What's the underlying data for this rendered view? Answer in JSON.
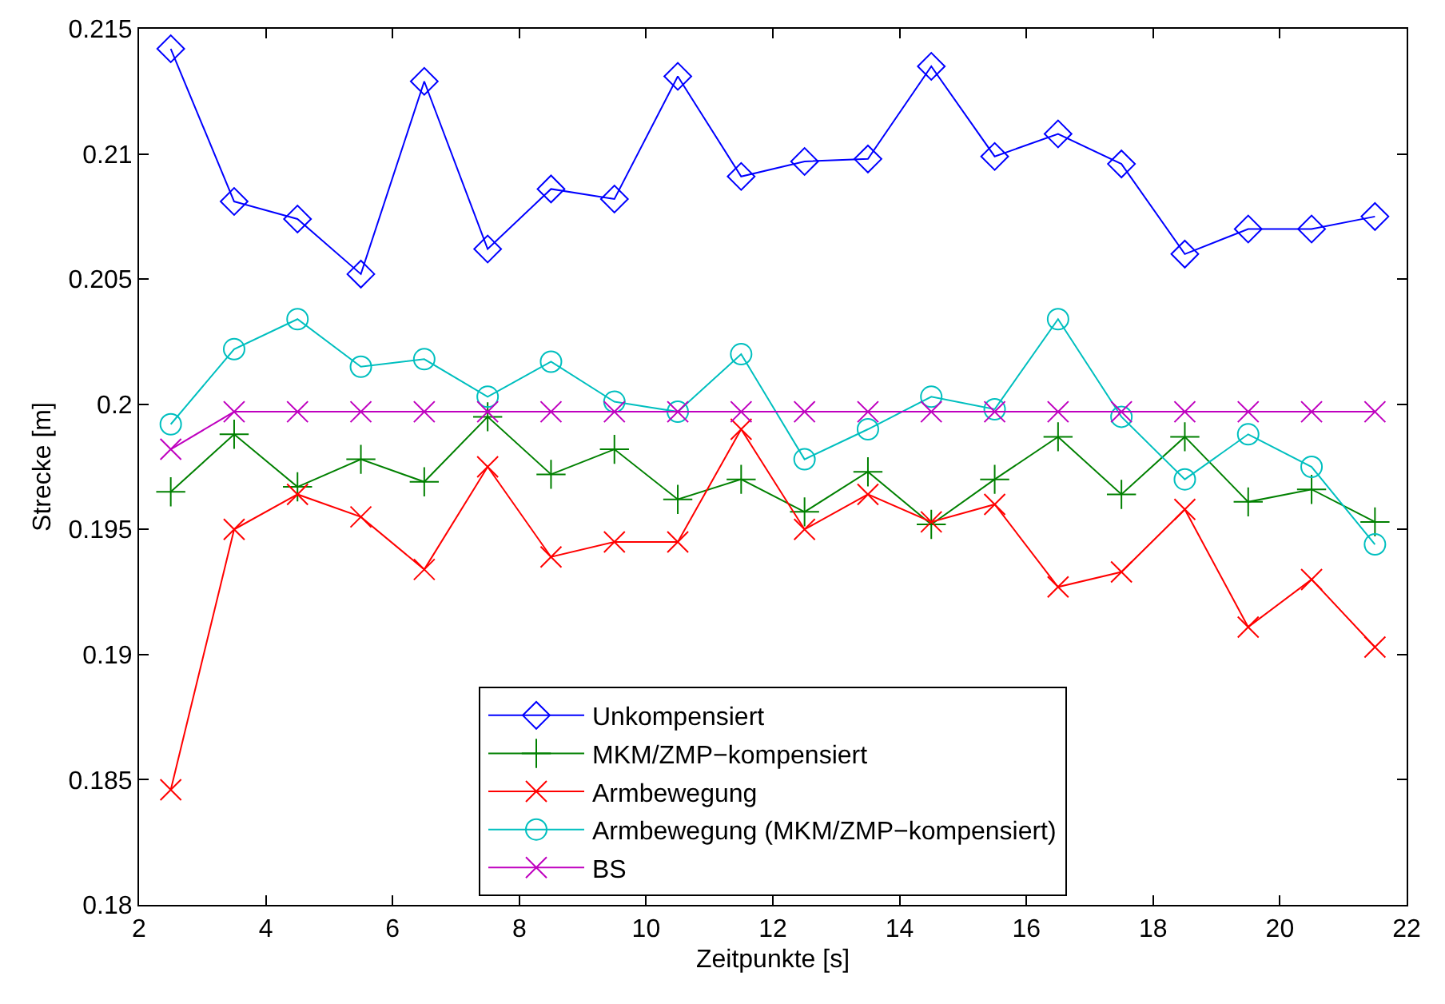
{
  "chart_data": {
    "type": "line",
    "xlabel": "Zeitpunkte [s]",
    "ylabel": "Strecke [m]",
    "x": [
      2.5,
      3.5,
      4.5,
      5.5,
      6.5,
      7.5,
      8.5,
      9.5,
      10.5,
      11.5,
      12.5,
      13.5,
      14.5,
      15.5,
      16.5,
      17.5,
      18.5,
      19.5,
      20.5,
      21.5
    ],
    "xlim": [
      2,
      22
    ],
    "xticks": [
      2,
      4,
      6,
      8,
      10,
      12,
      14,
      16,
      18,
      20,
      22
    ],
    "ylim": [
      0.18,
      0.215
    ],
    "yticks": [
      0.18,
      0.185,
      0.19,
      0.195,
      0.2,
      0.205,
      0.21,
      0.215
    ],
    "legend": "bottom",
    "line_style": "solid",
    "series": [
      {
        "name": "Unkompensiert",
        "color": "#0000ff",
        "marker": "diamond",
        "values": [
          0.2142,
          0.2081,
          0.2074,
          0.2052,
          0.2129,
          0.2062,
          0.2086,
          0.2082,
          0.2131,
          0.2091,
          0.2097,
          0.2098,
          0.2135,
          0.2099,
          0.2108,
          0.2096,
          0.206,
          0.207,
          0.207,
          0.2075
        ]
      },
      {
        "name": "MKM/ZMP−kompensiert",
        "color": "#008000",
        "marker": "cross",
        "values": [
          0.1965,
          0.1988,
          0.1967,
          0.1978,
          0.1969,
          0.1995,
          0.1972,
          0.1982,
          0.1962,
          0.197,
          0.1957,
          0.1973,
          0.1952,
          0.197,
          0.1987,
          0.1964,
          0.1987,
          0.1961,
          0.1966,
          0.1953
        ]
      },
      {
        "name": "Armbewegung",
        "color": "#ff0000",
        "marker": "x",
        "values": [
          0.1846,
          0.195,
          0.1964,
          0.1955,
          0.1934,
          0.1975,
          0.1939,
          0.1945,
          0.1945,
          0.199,
          0.195,
          0.1964,
          0.1953,
          0.196,
          0.1927,
          0.1933,
          0.1958,
          0.1911,
          0.193,
          0.1903
        ]
      },
      {
        "name": "Armbewegung (MKM/ZMP−kompensiert)",
        "color": "#00bfbf",
        "marker": "circle",
        "values": [
          0.1992,
          0.2022,
          0.2034,
          0.2015,
          0.2018,
          0.2003,
          0.2017,
          0.2001,
          0.1997,
          0.202,
          0.1978,
          0.199,
          0.2003,
          0.1998,
          0.2034,
          0.1995,
          0.197,
          0.1988,
          0.1975,
          0.1944
        ]
      },
      {
        "name": "BS",
        "color": "#bf00bf",
        "marker": "x",
        "values": [
          0.1982,
          0.1997,
          0.1997,
          0.1997,
          0.1997,
          0.1997,
          0.1997,
          0.1997,
          0.1997,
          0.1997,
          0.1997,
          0.1997,
          0.1997,
          0.1997,
          0.1997,
          0.1997,
          0.1997,
          0.1997,
          0.1997,
          0.1997
        ]
      }
    ]
  }
}
